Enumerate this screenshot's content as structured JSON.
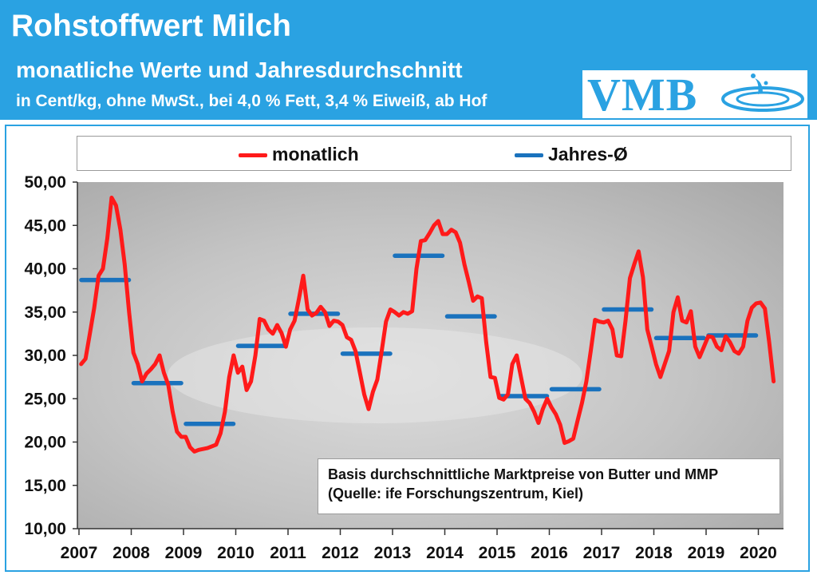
{
  "header": {
    "title": "Rohstoffwert Milch",
    "subtitle": "monatliche Werte und Jahresdurchschnitt",
    "unit_line": "in Cent/kg, ohne MwSt., bei 4,0 % Fett, 3,4 % Eiweiß, ab Hof",
    "logo_text": "VMB"
  },
  "colors": {
    "header_bg": "#2aa2e2",
    "monthly": "#ff1a1a",
    "annual": "#1a72bd",
    "plot_bg": "#c9c9c9"
  },
  "note": {
    "line1": "Basis durchschnittliche Marktpreise von Butter und MMP",
    "line2": "(Quelle: ife Forschungszentrum, Kiel)"
  },
  "chart_data": {
    "type": "line",
    "title": "Rohstoffwert Milch",
    "xlabel": "",
    "ylabel": "",
    "ylim": [
      10,
      50
    ],
    "ytick_labels": [
      "10,00",
      "15,00",
      "20,00",
      "25,00",
      "30,00",
      "35,00",
      "40,00",
      "45,00",
      "50,00"
    ],
    "xtick_labels": [
      "2007",
      "2008",
      "2009",
      "2010",
      "2011",
      "2012",
      "2013",
      "2014",
      "2015",
      "2016",
      "2017",
      "2018",
      "2019",
      "2020"
    ],
    "legend": {
      "position": "top",
      "entries": [
        "monatlich",
        "Jahres-Ø"
      ]
    },
    "grid": false,
    "series": [
      {
        "name": "monatlich",
        "start": "2007-01",
        "frequency": "monthly",
        "values": [
          29.0,
          29.6,
          32.5,
          35.5,
          39.2,
          40.0,
          43.5,
          48.2,
          47.3,
          44.5,
          40.5,
          35.0,
          30.3,
          29.0,
          27.0,
          27.9,
          28.4,
          29.0,
          30.0,
          28.0,
          26.6,
          23.5,
          21.2,
          20.6,
          20.6,
          19.4,
          18.9,
          19.1,
          19.2,
          19.3,
          19.5,
          19.7,
          21.0,
          23.5,
          27.5,
          30.0,
          28.0,
          28.7,
          26.0,
          27.0,
          30.0,
          34.2,
          34.0,
          33.0,
          32.5,
          33.5,
          32.6,
          31.0,
          33.0,
          34.0,
          36.5,
          39.2,
          35.3,
          34.6,
          34.9,
          35.6,
          35.0,
          33.4,
          34.0,
          33.9,
          33.5,
          32.1,
          31.8,
          30.5,
          28.0,
          25.5,
          23.8,
          25.8,
          27.2,
          30.5,
          33.9,
          35.3,
          35.0,
          34.6,
          35.0,
          34.8,
          35.1,
          40.0,
          43.2,
          43.3,
          44.1,
          45.0,
          45.5,
          44.0,
          44.0,
          44.5,
          44.2,
          43.0,
          40.5,
          38.5,
          36.3,
          36.8,
          36.6,
          31.5,
          27.5,
          27.4,
          25.1,
          24.9,
          25.5,
          29.0,
          30.0,
          27.5,
          25.0,
          24.5,
          23.5,
          22.2,
          23.8,
          25.0,
          24.0,
          23.2,
          22.0,
          19.9,
          20.1,
          20.4,
          22.5,
          24.5,
          27.0,
          30.5,
          34.1,
          33.9,
          33.8,
          34.0,
          33.0,
          30.0,
          29.9,
          34.0,
          38.9,
          40.5,
          42.0,
          39.0,
          33.0,
          31.0,
          29.0,
          27.5,
          29.0,
          30.5,
          35.0,
          36.7,
          34.0,
          33.8,
          35.1,
          31.0,
          29.8,
          31.0,
          32.2,
          32.1,
          31.0,
          30.6,
          32.2,
          31.5,
          30.5,
          30.2,
          31.0,
          34.0,
          35.5,
          36.0,
          36.1,
          35.4,
          31.5,
          27.0
        ]
      },
      {
        "name": "Jahres-Ø",
        "frequency": "annual",
        "x": [
          "2007",
          "2008",
          "2009",
          "2010",
          "2011",
          "2012",
          "2013",
          "2014",
          "2015",
          "2016",
          "2017",
          "2018",
          "2019"
        ],
        "values": [
          38.7,
          26.8,
          22.1,
          31.1,
          34.8,
          30.2,
          41.5,
          34.5,
          25.3,
          26.1,
          35.3,
          32.0,
          32.3
        ]
      }
    ]
  }
}
